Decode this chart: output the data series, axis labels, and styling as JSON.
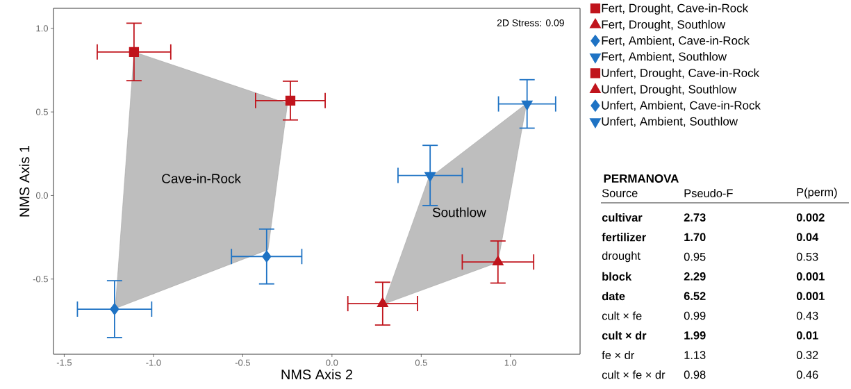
{
  "chart_data": {
    "type": "scatter",
    "xlabel": "NMS Axis 2",
    "ylabel": "NMS Axis 1",
    "xlim": [
      -1.56,
      1.39
    ],
    "ylim": [
      -0.95,
      1.12
    ],
    "xticks": [
      -1.5,
      {
        "value": -1.0,
        "label": "-1.0"
      },
      -0.5,
      {
        "value": 0.0,
        "label": "0.0"
      },
      0.5,
      {
        "value": 1.0,
        "label": "1.0"
      }
    ],
    "yticks": [
      -0.5,
      {
        "value": 0.0,
        "label": "0.0"
      },
      0.5,
      {
        "value": 1.0,
        "label": "1.0"
      }
    ],
    "grid": false,
    "legend": "right",
    "series": [
      {
        "type": "area",
        "color": "#bebebe",
        "x": [
          -1.109,
          -0.249,
          -0.358,
          -1.214
        ],
        "values": [
          0.859,
          0.55,
          -0.324,
          -0.676
        ]
      },
      {
        "type": "area",
        "color": "#bebebe",
        "x": [
          0.29,
          0.54,
          1.09,
          0.93
        ],
        "values": [
          -0.65,
          0.1,
          0.55,
          -0.4
        ]
      },
      {
        "name": "Fert, Drought, Cave-in-Rock",
        "color": "#c0141c",
        "marker": "square",
        "x": [
          -0.233
        ],
        "values": [
          0.568
        ],
        "xerrors": [
          0.195
        ],
        "errors": [
          0.116
        ]
      },
      {
        "name": "Fert, Drought, Southlow",
        "color": "#c0141c",
        "marker": "triangle",
        "x": [
          0.284
        ],
        "values": [
          -0.647
        ],
        "xerrors": [
          0.195
        ],
        "errors": [
          0.128
        ]
      },
      {
        "name": "Fert, Ambient, Cave-in-Rock",
        "color": "#1f73c4",
        "marker": "diamond",
        "x": [
          -0.366
        ],
        "values": [
          -0.365
        ],
        "xerrors": [
          0.197
        ],
        "errors": [
          0.164
        ]
      },
      {
        "name": "Fert, Ambient, Southlow",
        "color": "#1f73c4",
        "marker": "triangle down",
        "x": [
          0.55
        ],
        "values": [
          0.12
        ],
        "xerrors": [
          0.18
        ],
        "errors": [
          0.18
        ]
      },
      {
        "name": "Unfert, Drought, Cave-in-Rock",
        "color": "#c0141c",
        "marker": "square",
        "x": [
          -1.109
        ],
        "values": [
          0.859
        ],
        "xerrors": [
          0.206
        ],
        "errors": [
          0.172
        ]
      },
      {
        "name": "Unfert, Drought, Southlow",
        "color": "#c0141c",
        "marker": "triangle",
        "x": [
          0.93
        ],
        "values": [
          -0.398
        ],
        "xerrors": [
          0.2
        ],
        "errors": [
          0.126
        ]
      },
      {
        "name": "Unfert, Ambient, Cave-in-Rock",
        "color": "#1f73c4",
        "marker": "diamond",
        "x": [
          -1.218
        ],
        "values": [
          -0.68
        ],
        "xerrors": [
          0.208
        ],
        "errors": [
          0.17
        ]
      },
      {
        "name": "Unfert, Ambient, Southlow",
        "color": "#1f73c4",
        "marker": "triangle down",
        "x": [
          1.093
        ],
        "values": [
          0.548
        ],
        "xerrors": [
          0.16
        ],
        "errors": [
          0.145
        ]
      }
    ],
    "annotations": [
      "2D Stress: 0.09",
      "Cave-in-Rock",
      "Southlow",
      "**PERMANOVA**",
      "Source",
      "Pseudo-F",
      "P(perm)",
      "**cultivar**",
      "**2.73**",
      "**0.002**",
      "**fertilizer**",
      "**1.70**",
      "**0.04**",
      "drought",
      "0.95",
      "0.53",
      "**block**",
      "**2.29**",
      "**0.001**",
      "**date**",
      "**6.52**",
      "**0.001**",
      "cult × fe",
      "0.99",
      "0.43",
      "**cult × dr**",
      "**1.99**",
      "**0.01**",
      "fe × dr",
      "1.13",
      "0.32",
      "cult × fe × dr",
      "0.98",
      "0.46"
    ]
  }
}
